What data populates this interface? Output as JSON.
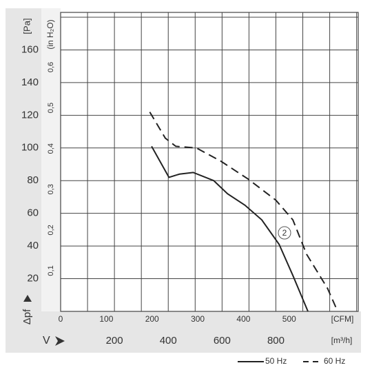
{
  "chart_data": {
    "type": "line",
    "y_label": "[Pa]",
    "y2_label": "(in H₂O)",
    "pressure_label": "Δpf",
    "flow_label": "V",
    "x_unit": "[CFM]",
    "x2_unit": "[m³/h]",
    "annotation": "2",
    "xlim": [
      0,
      651
    ],
    "xticks": [
      0,
      100,
      200,
      300,
      400,
      500
    ],
    "x2lim": [
      0,
      1106
    ],
    "x2ticks": [
      200,
      400,
      600,
      800
    ],
    "ylim": [
      0,
      180
    ],
    "yticks": [
      20,
      40,
      60,
      80,
      100,
      120,
      140,
      160
    ],
    "y2lim": [
      0,
      0.7227
    ],
    "y2ticks": [
      {
        "value": 0.1,
        "label": "0,1"
      },
      {
        "value": 0.2,
        "label": "0,2"
      },
      {
        "value": 0.3,
        "label": "0,3"
      },
      {
        "value": 0.4,
        "label": "0,4"
      },
      {
        "value": 0.5,
        "label": "0,5"
      },
      {
        "value": 0.6,
        "label": "0,6"
      }
    ],
    "grid": true,
    "series": [
      {
        "name": "50 Hz",
        "color": "#222222",
        "dashed": false,
        "x": [
          199,
          237,
          260,
          290,
          335,
          365,
          403,
          440,
          478,
          508,
          541
        ],
        "values": [
          101,
          82,
          84,
          85,
          80,
          72,
          65,
          56,
          41,
          22,
          0
        ]
      },
      {
        "name": "60 Hz",
        "color": "#222222",
        "dashed": true,
        "x": [
          195,
          229,
          252,
          297,
          350,
          410,
          471,
          508,
          538,
          584,
          606
        ],
        "values": [
          122,
          106,
          101,
          100,
          92,
          81,
          68,
          56,
          35,
          14,
          0
        ]
      }
    ]
  }
}
